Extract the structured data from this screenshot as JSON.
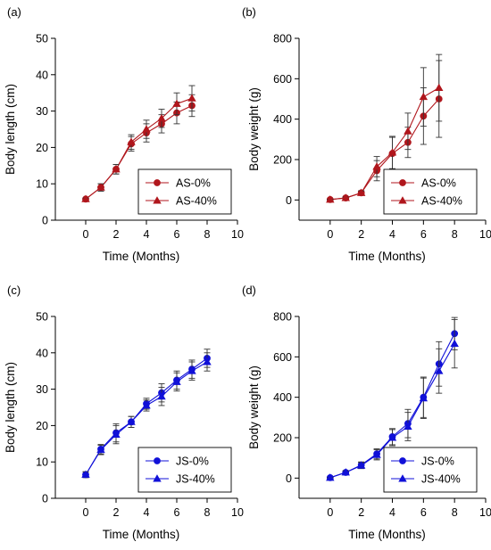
{
  "chart_data": [
    {
      "type": "line",
      "panel_label": "(a)",
      "xlabel": "Time (Months)",
      "ylabel": "Body length (cm)",
      "xlim": [
        -2,
        10
      ],
      "ylim": [
        0,
        50
      ],
      "xticks": [
        0,
        2,
        4,
        6,
        8,
        10
      ],
      "yticks": [
        0,
        10,
        20,
        30,
        40,
        50
      ],
      "grid": false,
      "legend_position": "bottom-right",
      "color": "#b0161c",
      "series": [
        {
          "name": "AS-0%",
          "marker": "circle",
          "x": [
            0,
            1,
            2,
            3,
            4,
            5,
            6,
            7
          ],
          "y": [
            5.8,
            9.0,
            14.0,
            21.0,
            24.0,
            26.5,
            29.5,
            31.5
          ],
          "err": [
            0.3,
            1.0,
            1.3,
            2.0,
            2.5,
            2.5,
            3.0,
            3.0
          ]
        },
        {
          "name": "AS-40%",
          "marker": "triangle",
          "x": [
            0,
            1,
            2,
            3,
            4,
            5,
            6,
            7
          ],
          "y": [
            5.8,
            9.0,
            14.0,
            21.5,
            25.0,
            28.0,
            32.0,
            33.5
          ],
          "err": [
            0.3,
            1.0,
            1.3,
            2.0,
            2.5,
            2.5,
            3.0,
            3.5
          ]
        }
      ]
    },
    {
      "type": "line",
      "panel_label": "(b)",
      "xlabel": "Time (Months)",
      "ylabel": "Body weight (g)",
      "xlim": [
        -2,
        10
      ],
      "ylim": [
        -100,
        800
      ],
      "xticks": [
        0,
        2,
        4,
        6,
        8,
        10
      ],
      "yticks": [
        0,
        200,
        400,
        600,
        800
      ],
      "grid": false,
      "legend_position": "bottom-right",
      "color": "#b0161c",
      "series": [
        {
          "name": "AS-0%",
          "marker": "circle",
          "x": [
            0,
            1,
            2,
            3,
            4,
            5,
            6,
            7
          ],
          "y": [
            2,
            10,
            35,
            145,
            230,
            285,
            415,
            500
          ],
          "err": [
            2,
            5,
            10,
            50,
            80,
            75,
            140,
            190
          ]
        },
        {
          "name": "AS-40%",
          "marker": "triangle",
          "x": [
            0,
            1,
            2,
            3,
            4,
            5,
            6,
            7
          ],
          "y": [
            2,
            10,
            35,
            165,
            235,
            340,
            510,
            555
          ],
          "err": [
            2,
            5,
            10,
            50,
            80,
            90,
            145,
            165
          ]
        }
      ]
    },
    {
      "type": "line",
      "panel_label": "(c)",
      "xlabel": "Time (Months)",
      "ylabel": "Body length (cm)",
      "xlim": [
        -2,
        10
      ],
      "ylim": [
        0,
        50
      ],
      "xticks": [
        0,
        2,
        4,
        6,
        8,
        10
      ],
      "yticks": [
        0,
        10,
        20,
        30,
        40,
        50
      ],
      "grid": false,
      "legend_position": "bottom-right",
      "color": "#1010d8",
      "series": [
        {
          "name": "JS-0%",
          "marker": "circle",
          "x": [
            0,
            1,
            2,
            3,
            4,
            5,
            6,
            7,
            8
          ],
          "y": [
            6.5,
            13.5,
            18.0,
            21.0,
            26.0,
            29.0,
            32.5,
            35.5,
            38.5
          ],
          "err": [
            0.8,
            1.3,
            2.5,
            1.5,
            1.5,
            2.5,
            2.5,
            2.5,
            2.5
          ]
        },
        {
          "name": "JS-40%",
          "marker": "triangle",
          "x": [
            0,
            1,
            2,
            3,
            4,
            5,
            6,
            7,
            8
          ],
          "y": [
            6.5,
            13.3,
            17.5,
            21.0,
            25.5,
            28.0,
            32.0,
            35.0,
            37.5
          ],
          "err": [
            0.8,
            1.3,
            2.5,
            1.5,
            1.5,
            2.5,
            2.5,
            2.5,
            2.5
          ]
        }
      ]
    },
    {
      "type": "line",
      "panel_label": "(d)",
      "xlabel": "Time (Months)",
      "ylabel": "Body weight (g)",
      "xlim": [
        -2,
        10
      ],
      "ylim": [
        -100,
        800
      ],
      "xticks": [
        0,
        2,
        4,
        6,
        8,
        10
      ],
      "yticks": [
        0,
        200,
        400,
        600,
        800
      ],
      "grid": false,
      "legend_position": "bottom-right",
      "color": "#1010d8",
      "series": [
        {
          "name": "JS-0%",
          "marker": "circle",
          "x": [
            0,
            1,
            2,
            3,
            4,
            5,
            6,
            7,
            8
          ],
          "y": [
            2,
            28,
            65,
            120,
            205,
            270,
            400,
            565,
            715
          ],
          "err": [
            2,
            8,
            15,
            25,
            40,
            70,
            100,
            110,
            80
          ]
        },
        {
          "name": "JS-40%",
          "marker": "triangle",
          "x": [
            0,
            1,
            2,
            3,
            4,
            5,
            6,
            7,
            8
          ],
          "y": [
            2,
            28,
            62,
            115,
            200,
            255,
            395,
            530,
            665
          ],
          "err": [
            2,
            8,
            15,
            25,
            40,
            70,
            100,
            110,
            120
          ]
        }
      ]
    }
  ]
}
